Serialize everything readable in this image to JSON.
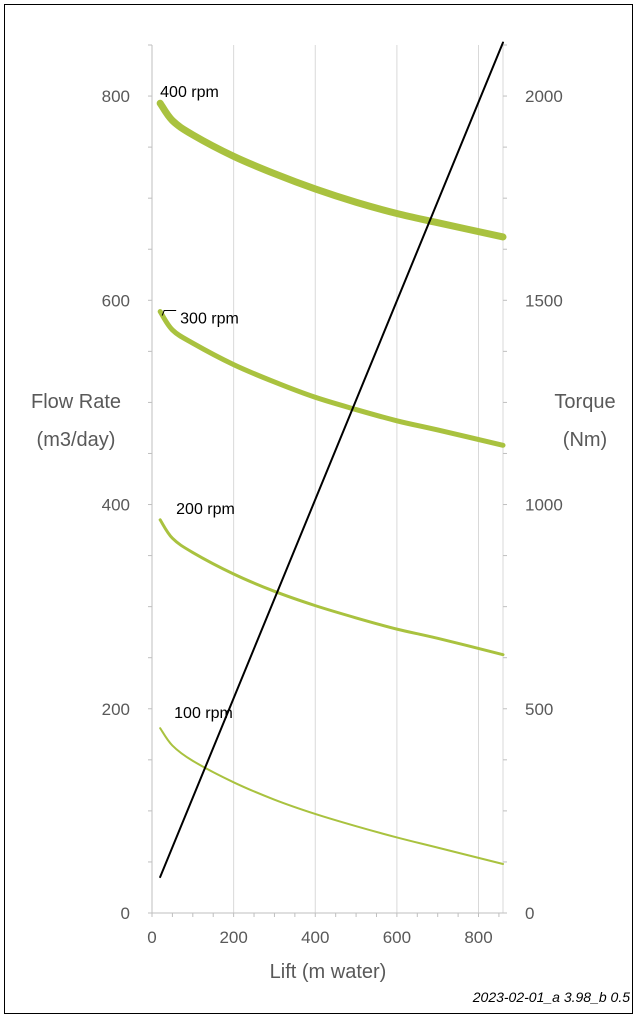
{
  "chart_data": {
    "type": "line",
    "xlabel": "Lift (m water)",
    "ylabel_left": [
      "Flow Rate",
      "(m3/day)"
    ],
    "ylabel_right": [
      "Torque",
      "(Nm)"
    ],
    "xlim": [
      0,
      860
    ],
    "ylim_left": [
      0,
      850
    ],
    "ylim_right": [
      0,
      2125
    ],
    "x_ticks": [
      "0",
      "200",
      "400",
      "600",
      "800"
    ],
    "y_left_ticks": [
      "0",
      "200",
      "400",
      "600",
      "800"
    ],
    "y_right_ticks": [
      "0",
      "500",
      "1000",
      "1500",
      "2000"
    ],
    "grid": "vertical",
    "series": [
      {
        "name": "400 rpm",
        "axis": "left",
        "color": "#a9c23f",
        "x": [
          20,
          50,
          100,
          200,
          300,
          400,
          500,
          600,
          700,
          860
        ],
        "y": [
          793,
          776,
          762,
          741,
          724,
          709,
          696,
          685,
          676,
          662
        ]
      },
      {
        "name": "300 rpm",
        "axis": "left",
        "color": "#a9c23f",
        "x": [
          20,
          50,
          100,
          200,
          300,
          400,
          500,
          600,
          700,
          860
        ],
        "y": [
          589,
          571,
          558,
          537,
          520,
          505,
          493,
          482,
          473,
          458
        ]
      },
      {
        "name": "200 rpm",
        "axis": "left",
        "color": "#a9c23f",
        "x": [
          20,
          50,
          100,
          200,
          300,
          400,
          500,
          600,
          700,
          860
        ],
        "y": [
          385,
          367,
          353,
          332,
          315,
          301,
          289,
          278,
          269,
          253
        ]
      },
      {
        "name": "100 rpm",
        "axis": "left",
        "color": "#a9c23f",
        "x": [
          20,
          50,
          100,
          200,
          300,
          400,
          500,
          600,
          700,
          860
        ],
        "y": [
          181,
          164,
          149,
          128,
          111,
          97,
          85,
          74,
          64,
          48
        ]
      },
      {
        "name": "Torque",
        "axis": "right",
        "color": "#000000",
        "x": [
          20,
          860
        ],
        "y": [
          88,
          2131
        ]
      }
    ],
    "footnote": "2023-02-01_a 3.98_b 0.5"
  }
}
